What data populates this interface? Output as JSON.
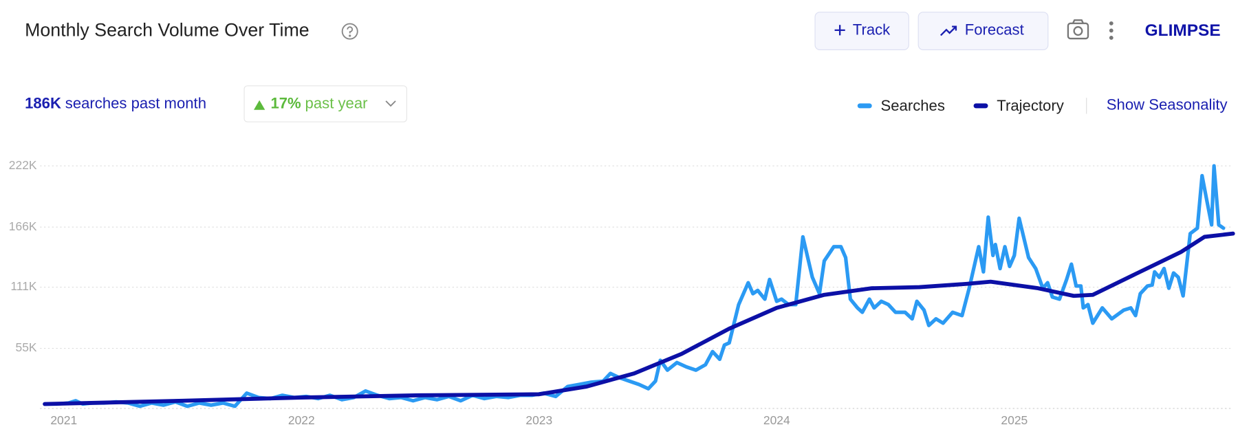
{
  "header": {
    "title": "Monthly Search Volume Over Time",
    "track": "Track",
    "forecast": "Forecast",
    "logo": "GLIMPSE"
  },
  "stats": {
    "searches": "186K",
    "searches_label": "searches past month",
    "change": "17%",
    "change_label": "past year"
  },
  "show_seasonality": "Show Seasonality",
  "chart_data": {
    "type": "line",
    "xlim": [
      2020.9,
      2025.92
    ],
    "xticks": [
      2021,
      2022,
      2023,
      2024,
      2025
    ],
    "ylim": [
      0,
      222000
    ],
    "yticks": [
      {
        "value": 55000,
        "label": "55K"
      },
      {
        "value": 111000,
        "label": "111K"
      },
      {
        "value": 166000,
        "label": "166K"
      },
      {
        "value": 222000,
        "label": "222K"
      }
    ],
    "grid": true,
    "series": [
      {
        "name": "Searches",
        "color": "#2b9af3",
        "x": [
          2020.92,
          2020.97,
          2021.02,
          2021.05,
          2021.08,
          2021.12,
          2021.17,
          2021.22,
          2021.27,
          2021.32,
          2021.37,
          2021.42,
          2021.47,
          2021.52,
          2021.57,
          2021.62,
          2021.67,
          2021.72,
          2021.77,
          2021.82,
          2021.87,
          2021.92,
          2021.97,
          2022.02,
          2022.07,
          2022.12,
          2022.17,
          2022.22,
          2022.27,
          2022.32,
          2022.37,
          2022.42,
          2022.47,
          2022.52,
          2022.57,
          2022.62,
          2022.67,
          2022.72,
          2022.77,
          2022.82,
          2022.87,
          2022.92,
          2022.97,
          2023.02,
          2023.07,
          2023.12,
          2023.17,
          2023.22,
          2023.27,
          2023.3,
          2023.34,
          2023.38,
          2023.42,
          2023.46,
          2023.49,
          2023.51,
          2023.54,
          2023.58,
          2023.62,
          2023.66,
          2023.7,
          2023.73,
          2023.76,
          2023.78,
          2023.8,
          2023.84,
          2023.88,
          2023.9,
          2023.92,
          2023.95,
          2023.97,
          2024.0,
          2024.02,
          2024.05,
          2024.08,
          2024.11,
          2024.15,
          2024.18,
          2024.2,
          2024.24,
          2024.27,
          2024.29,
          2024.31,
          2024.34,
          2024.36,
          2024.39,
          2024.41,
          2024.44,
          2024.47,
          2024.5,
          2024.54,
          2024.57,
          2024.59,
          2024.62,
          2024.64,
          2024.67,
          2024.7,
          2024.74,
          2024.78,
          2024.81,
          2024.85,
          2024.87,
          2024.89,
          2024.91,
          2024.92,
          2024.94,
          2024.96,
          2024.98,
          2025.0,
          2025.02,
          2025.06,
          2025.09,
          2025.12,
          2025.14,
          2025.16,
          2025.19,
          2025.22,
          2025.24,
          2025.26,
          2025.28,
          2025.29,
          2025.31,
          2025.33,
          2025.37,
          2025.41,
          2025.46,
          2025.49,
          2025.51,
          2025.53,
          2025.56,
          2025.58,
          2025.59,
          2025.61,
          2025.63,
          2025.65,
          2025.67,
          2025.69,
          2025.71,
          2025.74,
          2025.77,
          2025.79,
          2025.81,
          2025.83,
          2025.84,
          2025.86,
          2025.88
        ],
        "values": [
          4000,
          4000,
          5000,
          7000,
          4000,
          5000,
          5000,
          6000,
          5000,
          2000,
          5000,
          3000,
          6000,
          2000,
          5000,
          3000,
          5000,
          2000,
          14000,
          10000,
          9000,
          12000,
          10000,
          11000,
          9000,
          12000,
          8000,
          10000,
          16000,
          12000,
          9000,
          10000,
          7000,
          10000,
          8000,
          11000,
          7000,
          12000,
          9000,
          11000,
          10000,
          12000,
          12000,
          14000,
          11000,
          20000,
          22000,
          24000,
          25000,
          32000,
          28000,
          25000,
          22000,
          18000,
          25000,
          44000,
          35000,
          42000,
          38000,
          35000,
          40000,
          52000,
          45000,
          58000,
          60000,
          95000,
          115000,
          105000,
          108000,
          100000,
          118000,
          98000,
          100000,
          95000,
          95000,
          157000,
          120000,
          105000,
          135000,
          148000,
          148000,
          138000,
          100000,
          92000,
          88000,
          100000,
          92000,
          98000,
          95000,
          88000,
          88000,
          82000,
          98000,
          90000,
          76000,
          82000,
          78000,
          88000,
          85000,
          110000,
          148000,
          125000,
          175000,
          140000,
          150000,
          128000,
          148000,
          130000,
          140000,
          174000,
          138000,
          128000,
          110000,
          115000,
          102000,
          100000,
          118000,
          132000,
          112000,
          112000,
          92000,
          95000,
          78000,
          92000,
          82000,
          90000,
          92000,
          85000,
          105000,
          112000,
          113000,
          125000,
          120000,
          128000,
          110000,
          124000,
          120000,
          103000,
          160000,
          165000,
          213000,
          190000,
          168000,
          222000,
          168000,
          165000
        ]
      },
      {
        "name": "Trajectory",
        "color": "#0c10a6",
        "x": [
          2020.92,
          2021.5,
          2022.0,
          2022.5,
          2023.0,
          2023.2,
          2023.4,
          2023.6,
          2023.8,
          2024.0,
          2024.2,
          2024.4,
          2024.6,
          2024.8,
          2024.9,
          2025.1,
          2025.25,
          2025.33,
          2025.5,
          2025.7,
          2025.8,
          2025.92
        ],
        "values": [
          4000,
          7000,
          10000,
          12000,
          13000,
          20000,
          32000,
          50000,
          73000,
          92000,
          104000,
          110000,
          111000,
          114000,
          116000,
          110000,
          103000,
          104000,
          122000,
          143000,
          157000,
          160000
        ]
      }
    ]
  }
}
